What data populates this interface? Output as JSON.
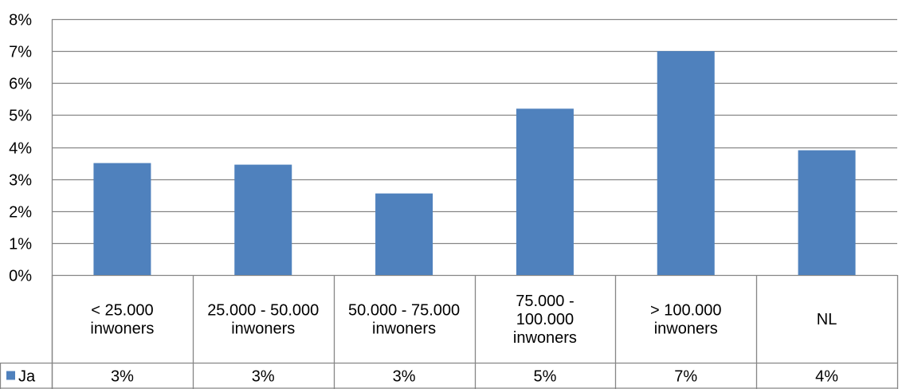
{
  "chart_data": {
    "type": "bar",
    "categories": [
      [
        "< 25.000",
        "inwoners"
      ],
      [
        "25.000 - 50.000",
        "inwoners"
      ],
      [
        "50.000 - 75.000",
        "inwoners"
      ],
      [
        "75.000 -",
        "100.000",
        "inwoners"
      ],
      [
        "> 100.000",
        "inwoners"
      ],
      [
        "NL"
      ]
    ],
    "series": [
      {
        "name": "Ja",
        "values": [
          0.035,
          0.0345,
          0.0255,
          0.052,
          0.07,
          0.039
        ],
        "table_labels": [
          "3%",
          "3%",
          "3%",
          "5%",
          "7%",
          "4%"
        ]
      }
    ],
    "ylim": [
      0,
      0.08
    ],
    "yticks": [
      0,
      0.01,
      0.02,
      0.03,
      0.04,
      0.05,
      0.06,
      0.07,
      0.08
    ],
    "ytick_labels": [
      "0%",
      "1%",
      "2%",
      "3%",
      "4%",
      "5%",
      "6%",
      "7%",
      "8%"
    ],
    "grid": true,
    "data_table": true,
    "colors": {
      "bar": "#4F81BD",
      "grid": "#868686",
      "axis": "#868686"
    }
  }
}
